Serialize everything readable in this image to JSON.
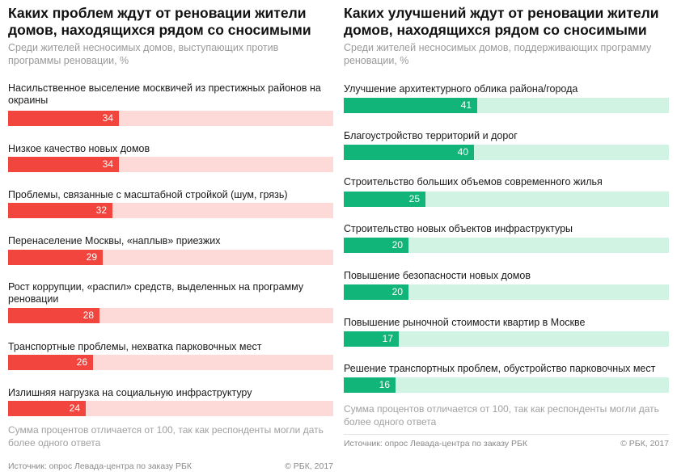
{
  "colors": {
    "left_fill": "#f1453d",
    "left_track": "#fddad8",
    "right_fill": "#11b57a",
    "right_track": "#d1f3e4"
  },
  "left": {
    "title": "Каких проблем ждут от реновации жители домов, находящихся рядом со сносимыми",
    "subtitle": "Среди жителей несносимых домов, выступающих против программы реновации, %",
    "note": "Сумма процентов отличается от 100, так как респонденты могли дать более одного ответа",
    "source": "Источник: опрос Левада-центра по заказу РБК",
    "copyright": "© РБК, 2017"
  },
  "right": {
    "title": "Каких улучшений ждут от реновации жители домов, находящихся рядом со сносимыми",
    "subtitle": "Среди жителей несносимых домов, поддерживающих программу реновации, %",
    "note": "Сумма процентов отличается от 100, так как респонденты могли дать более одного ответа",
    "source": "Источник: опрос Левада-центра по заказу РБК",
    "copyright": "© РБК, 2017"
  },
  "chart_data": [
    {
      "type": "bar",
      "orientation": "horizontal",
      "title": "Каких проблем ждут от реновации жители домов, находящихся рядом со сносимыми",
      "subtitle": "Среди жителей несносимых домов, выступающих против программы реновации, %",
      "xlim": [
        0,
        100
      ],
      "categories": [
        "Насильственное выселение москвичей из престижных районов на окраины",
        "Низкое качество новых домов",
        "Проблемы, связанные с масштабной стройкой (шум, грязь)",
        "Перенаселение Москвы, «наплыв» приезжих",
        "Рост коррупции, «распил» средств, выделенных на программу реновации",
        "Транспортные проблемы, нехватка парковочных мест",
        "Излишняя нагрузка на социальную инфраструктуру"
      ],
      "values": [
        34,
        34,
        32,
        29,
        28,
        26,
        24
      ]
    },
    {
      "type": "bar",
      "orientation": "horizontal",
      "title": "Каких улучшений ждут от реновации жители домов, находящихся рядом со сносимыми",
      "subtitle": "Среди жителей несносимых домов, поддерживающих программу реновации, %",
      "xlim": [
        0,
        100
      ],
      "categories": [
        "Улучшение архитектурного облика района/города",
        "Благоустройство территорий и дорог",
        "Строительство больших объемов современного жилья",
        "Строительство новых объектов инфраструктуры",
        "Повышение безопасности новых домов",
        "Повышение рыночной стоимости квартир в Москве",
        "Решение транспортных проблем, обустройство парковочных мест"
      ],
      "values": [
        41,
        40,
        25,
        20,
        20,
        17,
        16
      ]
    }
  ]
}
